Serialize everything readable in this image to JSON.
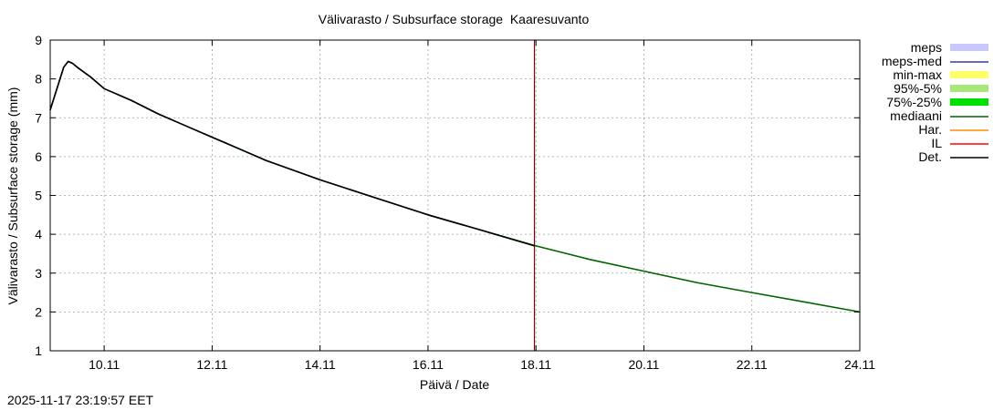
{
  "chart_data": {
    "type": "line",
    "title": "Välivarasto / Subsurface storage  Kaaresuvanto",
    "xlabel": "Päivä / Date",
    "ylabel": "Välivarasto / Subsurface storage (mm)",
    "xlim": [
      "2025-11-09T00:00",
      "2025-11-24T00:00"
    ],
    "ylim": [
      1,
      9
    ],
    "yticks": [
      1,
      2,
      3,
      4,
      5,
      6,
      7,
      8,
      9
    ],
    "xticks": [
      {
        "label": "10.11",
        "date": "2025-11-10T00:00"
      },
      {
        "label": "12.11",
        "date": "2025-11-12T00:00"
      },
      {
        "label": "14.11",
        "date": "2025-11-14T00:00"
      },
      {
        "label": "16.11",
        "date": "2025-11-16T00:00"
      },
      {
        "label": "18.11",
        "date": "2025-11-18T00:00"
      },
      {
        "label": "20.11",
        "date": "2025-11-20T00:00"
      },
      {
        "label": "22.11",
        "date": "2025-11-22T00:00"
      },
      {
        "label": "24.11",
        "date": "2025-11-24T00:00"
      }
    ],
    "grid": true,
    "legend_position": "outside-right",
    "forecast_marker": {
      "date": "2025-11-17T23:20",
      "color": "#8b0000"
    },
    "legend": [
      {
        "name": "meps",
        "color": "#c8c8ff",
        "style": "band"
      },
      {
        "name": "meps-med",
        "color": "#3a3ab4",
        "style": "line"
      },
      {
        "name": "min-max",
        "color": "#ffff66",
        "style": "band"
      },
      {
        "name": "95%-5%",
        "color": "#a8e878",
        "style": "band"
      },
      {
        "name": "75%-25%",
        "color": "#00e000",
        "style": "band"
      },
      {
        "name": "mediaani",
        "color": "#006400",
        "style": "line"
      },
      {
        "name": "Har.",
        "color": "#ff8c00",
        "style": "line"
      },
      {
        "name": "IL",
        "color": "#ff0000",
        "style": "line"
      },
      {
        "name": "Det.",
        "color": "#000000",
        "style": "line"
      }
    ],
    "series": [
      {
        "name": "Det.",
        "color": "#000000",
        "x": [
          "2025-11-09T00:00",
          "2025-11-09T06:00",
          "2025-11-09T08:00",
          "2025-11-09T10:00",
          "2025-11-09T12:00",
          "2025-11-09T18:00",
          "2025-11-10T00:00",
          "2025-11-10T12:00",
          "2025-11-11T00:00",
          "2025-11-11T12:00",
          "2025-11-12T00:00",
          "2025-11-12T12:00",
          "2025-11-13T00:00",
          "2025-11-14T00:00",
          "2025-11-15T00:00",
          "2025-11-16T00:00",
          "2025-11-17T00:00",
          "2025-11-17T23:20"
        ],
        "y": [
          7.2,
          8.3,
          8.45,
          8.4,
          8.3,
          8.05,
          7.75,
          7.45,
          7.1,
          6.8,
          6.5,
          6.2,
          5.9,
          5.4,
          4.95,
          4.5,
          4.1,
          3.7
        ]
      },
      {
        "name": "mediaani",
        "color": "#006400",
        "x": [
          "2025-11-09T00:00",
          "2025-11-09T06:00",
          "2025-11-09T08:00",
          "2025-11-09T10:00",
          "2025-11-09T12:00",
          "2025-11-09T18:00",
          "2025-11-10T00:00",
          "2025-11-10T12:00",
          "2025-11-11T00:00",
          "2025-11-11T12:00",
          "2025-11-12T00:00",
          "2025-11-13T00:00",
          "2025-11-14T00:00",
          "2025-11-15T00:00",
          "2025-11-16T00:00",
          "2025-11-17T00:00",
          "2025-11-18T00:00",
          "2025-11-19T00:00",
          "2025-11-20T00:00",
          "2025-11-21T00:00",
          "2025-11-22T00:00",
          "2025-11-23T00:00",
          "2025-11-24T00:00"
        ],
        "y": [
          7.2,
          8.3,
          8.45,
          8.4,
          8.3,
          8.05,
          7.75,
          7.45,
          7.1,
          6.8,
          6.5,
          5.9,
          5.4,
          4.95,
          4.5,
          4.1,
          3.7,
          3.35,
          3.05,
          2.75,
          2.5,
          2.25,
          2.0
        ]
      }
    ]
  },
  "timestamp": "2025-11-17 23:19:57 EET"
}
